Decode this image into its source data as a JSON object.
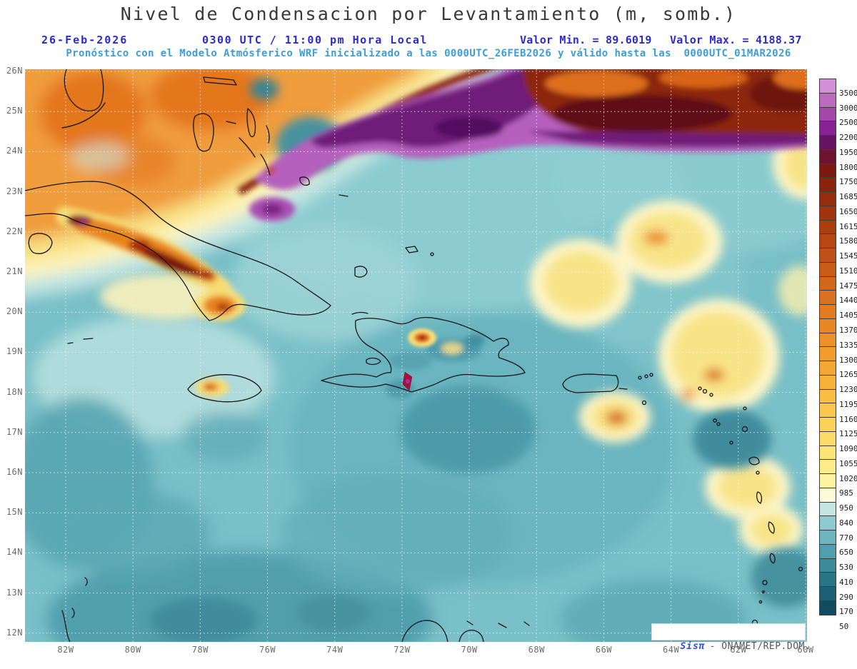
{
  "header": {
    "title": "Nivel de Condensacion por Levantamiento (m, somb.)",
    "date": "26-Feb-2026",
    "time": "0300 UTC / 11:00 pm Hora Local",
    "min_label": "Valor Min. = 89.6019",
    "max_label": "Valor Max. = 4188.37",
    "forecast_line": "Pronóstico con el Modelo Atmósferico WRF inicializado a las 0000UTC_26FEB2026 y válido hasta las  0000UTC_01MAR2026"
  },
  "map": {
    "lat_labels": [
      "26N",
      "25N",
      "24N",
      "23N",
      "22N",
      "21N",
      "20N",
      "19N",
      "18N",
      "17N",
      "16N",
      "15N",
      "14N",
      "13N",
      "12N"
    ],
    "lon_labels": [
      "82W",
      "80W",
      "78W",
      "76W",
      "74W",
      "72W",
      "70W",
      "68W",
      "66W",
      "64W",
      "62W",
      "60W"
    ]
  },
  "colorbar": {
    "levels": [
      3500,
      3000,
      2500,
      2200,
      1950,
      1800,
      1750,
      1685,
      1650,
      1615,
      1580,
      1545,
      1510,
      1475,
      1440,
      1405,
      1370,
      1335,
      1300,
      1265,
      1230,
      1195,
      1160,
      1125,
      1090,
      1055,
      1020,
      985,
      950,
      840,
      770,
      650,
      530,
      410,
      290,
      170,
      50
    ],
    "colors": [
      "#d58fd6",
      "#bd6ac1",
      "#a546ab",
      "#882394",
      "#671364",
      "#6d1430",
      "#7c1a10",
      "#8a230c",
      "#962b0d",
      "#a1340f",
      "#ac3d11",
      "#b64713",
      "#c05116",
      "#c95b18",
      "#d2661b",
      "#da711e",
      "#e17c21",
      "#e78725",
      "#ec9229",
      "#f19d2e",
      "#f4a834",
      "#f7b23b",
      "#f9bd44",
      "#fbc74e",
      "#fcd15a",
      "#fddb68",
      "#fde478",
      "#feec8a",
      "#fef3a2",
      "#fdf8d8",
      "#c5e5e2",
      "#8ccbd0",
      "#6db6c1",
      "#4f9fae",
      "#3a8a9c",
      "#2a7488",
      "#1d5f74",
      "#134b60"
    ]
  },
  "watermark": {
    "brand": "Sisπ",
    "org": "- ONAMET/REP.DOM."
  },
  "chart_data": {
    "type": "heatmap",
    "title": "Nivel de Condensacion por Levantamiento (m, somb.)",
    "units": "m",
    "value_min": 89.6019,
    "value_max": 4188.37,
    "model_run": "0000UTC_26FEB2026",
    "valid_until": "0000UTC_01MAR2026",
    "valid_time": "0300 UTC / 11:00 pm Hora Local",
    "contour_levels": [
      50,
      170,
      290,
      410,
      530,
      650,
      770,
      840,
      950,
      985,
      1020,
      1055,
      1090,
      1125,
      1160,
      1195,
      1230,
      1265,
      1300,
      1335,
      1370,
      1405,
      1440,
      1475,
      1510,
      1545,
      1580,
      1615,
      1650,
      1685,
      1750,
      1800,
      1950,
      2200,
      2500,
      3000,
      3500
    ],
    "x_ticks": [
      "82W",
      "80W",
      "78W",
      "76W",
      "74W",
      "72W",
      "70W",
      "68W",
      "66W",
      "64W",
      "62W",
      "60W"
    ],
    "y_ticks": [
      "26N",
      "25N",
      "24N",
      "23N",
      "22N",
      "21N",
      "20N",
      "19N",
      "18N",
      "17N",
      "16N",
      "15N",
      "14N",
      "13N",
      "12N"
    ],
    "legend_position": "right",
    "grid": "dotted"
  }
}
